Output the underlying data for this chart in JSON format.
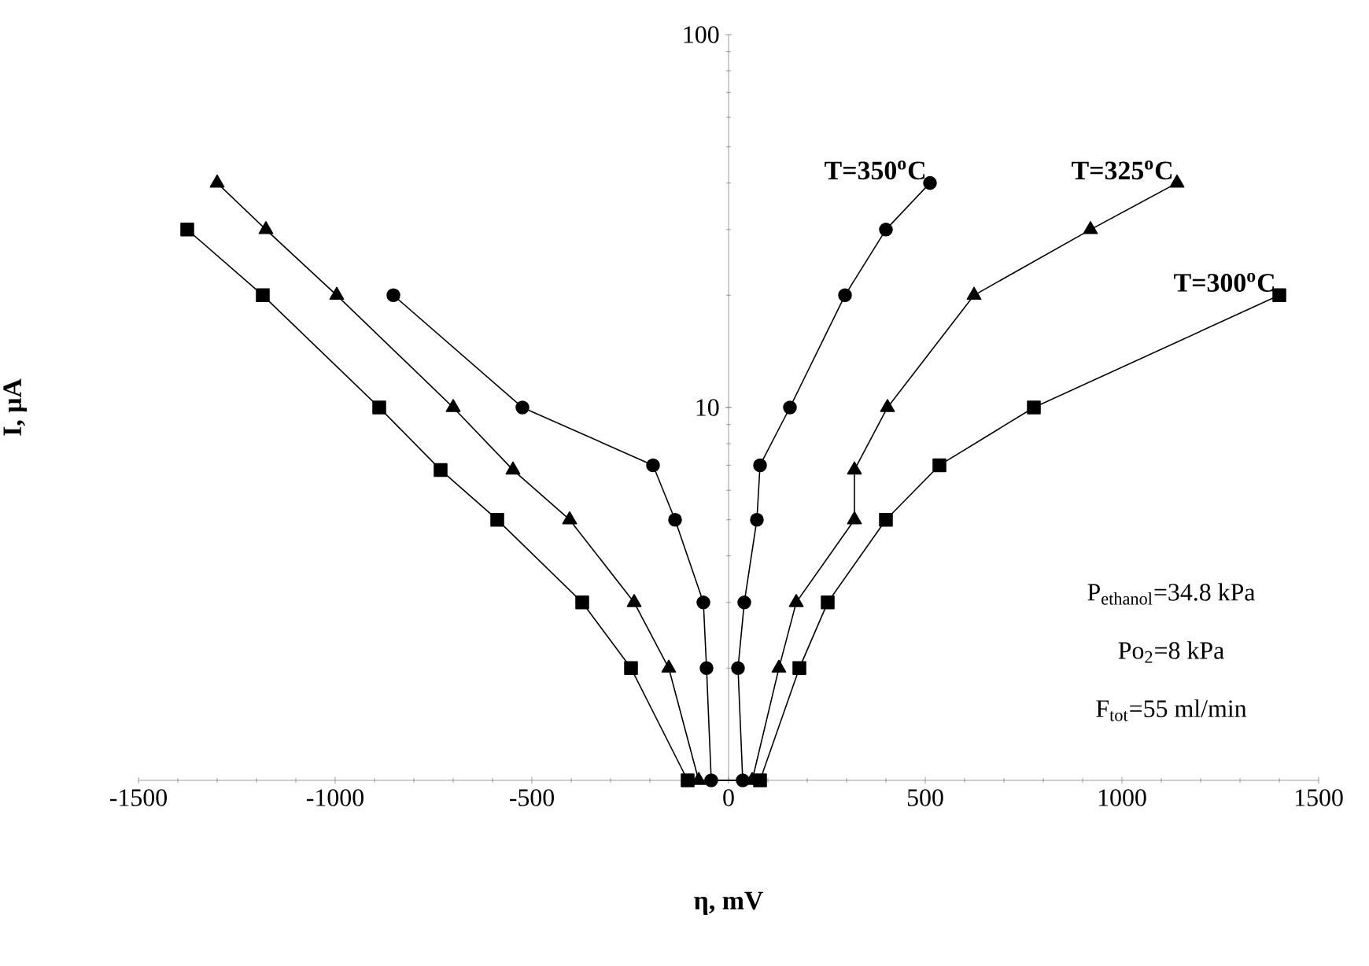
{
  "chart_data": {
    "type": "line",
    "xlabel": "η, mV",
    "ylabel": "I, μA",
    "log": "y",
    "xlim": [
      -1500,
      1500
    ],
    "xticks": [
      -1500,
      -1000,
      -500,
      0,
      500,
      1000,
      1500
    ],
    "ylim": [
      1,
      100
    ],
    "yticks": [
      {
        "value": 1,
        "label": null
      },
      10,
      100
    ],
    "line_style": "solid",
    "series": [
      {
        "name": "T=350$^{o}$C",
        "color": "#000000",
        "marker": "circle",
        "x": [
          -852,
          -524,
          -192,
          -136,
          -64,
          -56,
          -44,
          36,
          24,
          40,
          72,
          80,
          156,
          296,
          400,
          512
        ],
        "values": [
          20,
          10,
          7,
          5,
          3,
          2,
          1,
          1,
          2,
          3,
          5,
          7,
          10,
          20,
          30,
          40
        ]
      },
      {
        "name": "T=325$^{o}$C",
        "color": "#000000",
        "marker": "triangle",
        "x": [
          -1300,
          -1176,
          -996,
          -700,
          -548,
          -404,
          -240,
          -152,
          -76,
          60,
          128,
          172,
          320,
          320,
          404,
          624,
          920,
          1140
        ],
        "values": [
          40,
          30,
          20,
          10,
          6.8,
          5,
          3,
          2,
          1,
          1,
          2,
          3,
          5,
          6.8,
          10,
          20,
          30,
          40
        ]
      },
      {
        "name": "T=300$^{o}$C",
        "color": "#000000",
        "marker": "square",
        "x": [
          -1376,
          -1184,
          -888,
          -732,
          -588,
          -372,
          -248,
          -104,
          80,
          180,
          252,
          400,
          536,
          776,
          1400
        ],
        "values": [
          30,
          20,
          10,
          6.8,
          5,
          3,
          2,
          1,
          1,
          2,
          3,
          5,
          7,
          10,
          20
        ]
      }
    ],
    "annotations": [
      "P$_{ethanol}$=34.8 kPa",
      "Po$_{2}$=8 kPa",
      "F$_{tot}$=55 ml/min"
    ]
  }
}
